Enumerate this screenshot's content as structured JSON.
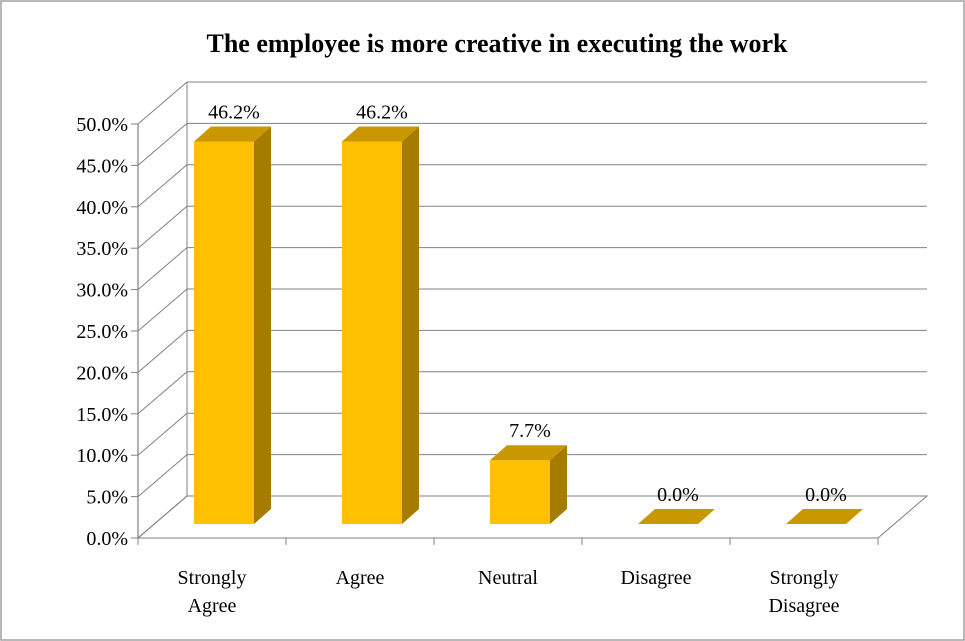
{
  "chart_data": {
    "type": "bar",
    "title": "The employee is more creative in executing the work",
    "categories": [
      "Strongly Agree",
      "Agree",
      "Neutral",
      "Disagree",
      "Strongly Disagree"
    ],
    "category_lines": [
      [
        "Strongly",
        "Agree"
      ],
      [
        "Agree"
      ],
      [
        "Neutral"
      ],
      [
        "Disagree"
      ],
      [
        "Strongly",
        "Disagree"
      ]
    ],
    "values": [
      46.2,
      46.2,
      7.7,
      0.0,
      0.0
    ],
    "value_labels": [
      "46.2%",
      "46.2%",
      "7.7%",
      "0.0%",
      "0.0%"
    ],
    "ylim": [
      0,
      50
    ],
    "yticks": [
      "0.0%",
      "5.0%",
      "10.0%",
      "15.0%",
      "20.0%",
      "25.0%",
      "30.0%",
      "35.0%",
      "40.0%",
      "45.0%",
      "50.0%"
    ],
    "xlabel": "",
    "ylabel": "",
    "grid": true,
    "three_d": true,
    "colors": {
      "bar_front": "#FFC000",
      "bar_side": "#A67C00",
      "bar_top": "#C99700",
      "grid": "#808080",
      "frame": "#808080"
    }
  }
}
